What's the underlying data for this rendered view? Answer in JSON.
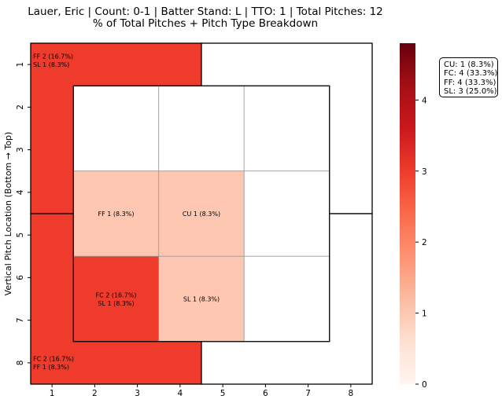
{
  "chart_data": {
    "type": "heatmap",
    "title_lines": [
      "Lauer, Eric | Count: 0-1 | Batter Stand: L | TTO: 1 | Total Pitches: 12",
      "% of Total Pitches + Pitch Type Breakdown"
    ],
    "ylabel": "Vertical Pitch Location (Bottom → Top)",
    "xlabel": "",
    "x_ticks": [
      "1",
      "2",
      "3",
      "4",
      "5",
      "6",
      "7",
      "8"
    ],
    "y_ticks": [
      "1",
      "2",
      "3",
      "4",
      "5",
      "6",
      "7",
      "8"
    ],
    "colormap": "Reds",
    "colorbar": {
      "min": 0,
      "max": 4.8,
      "ticks": [
        "0",
        "1",
        "2",
        "3",
        "4"
      ]
    },
    "cells": [
      {
        "zone": "top-left",
        "count": 3,
        "lines": [
          "FF 2 (16.7%)",
          "SL 1 (8.3%)"
        ]
      },
      {
        "zone": "top-right",
        "count": 0,
        "lines": []
      },
      {
        "zone": "bottom-left",
        "count": 3,
        "lines": [
          "FC 2 (16.7%)",
          "FF 1 (8.3%)"
        ]
      },
      {
        "zone": "bottom-right",
        "count": 0,
        "lines": []
      },
      {
        "zone": "r1c1",
        "count": 0,
        "lines": []
      },
      {
        "zone": "r1c2",
        "count": 0,
        "lines": []
      },
      {
        "zone": "r1c3",
        "count": 0,
        "lines": []
      },
      {
        "zone": "r2c1",
        "count": 1,
        "lines": [
          "FF 1 (8.3%)"
        ]
      },
      {
        "zone": "r2c2",
        "count": 1,
        "lines": [
          "CU 1 (8.3%)"
        ]
      },
      {
        "zone": "r2c3",
        "count": 0,
        "lines": []
      },
      {
        "zone": "r3c1",
        "count": 3,
        "lines": [
          "FC 2 (16.7%)",
          "SL 1 (8.3%)"
        ]
      },
      {
        "zone": "r3c2",
        "count": 1,
        "lines": [
          "SL 1 (8.3%)"
        ]
      },
      {
        "zone": "r3c3",
        "count": 0,
        "lines": []
      }
    ],
    "legend_box": [
      "CU: 1 (8.3%)",
      "FC: 4 (33.3%)",
      "FF: 4 (33.3%)",
      "SL: 3 (25.0%)"
    ],
    "grid": false
  }
}
